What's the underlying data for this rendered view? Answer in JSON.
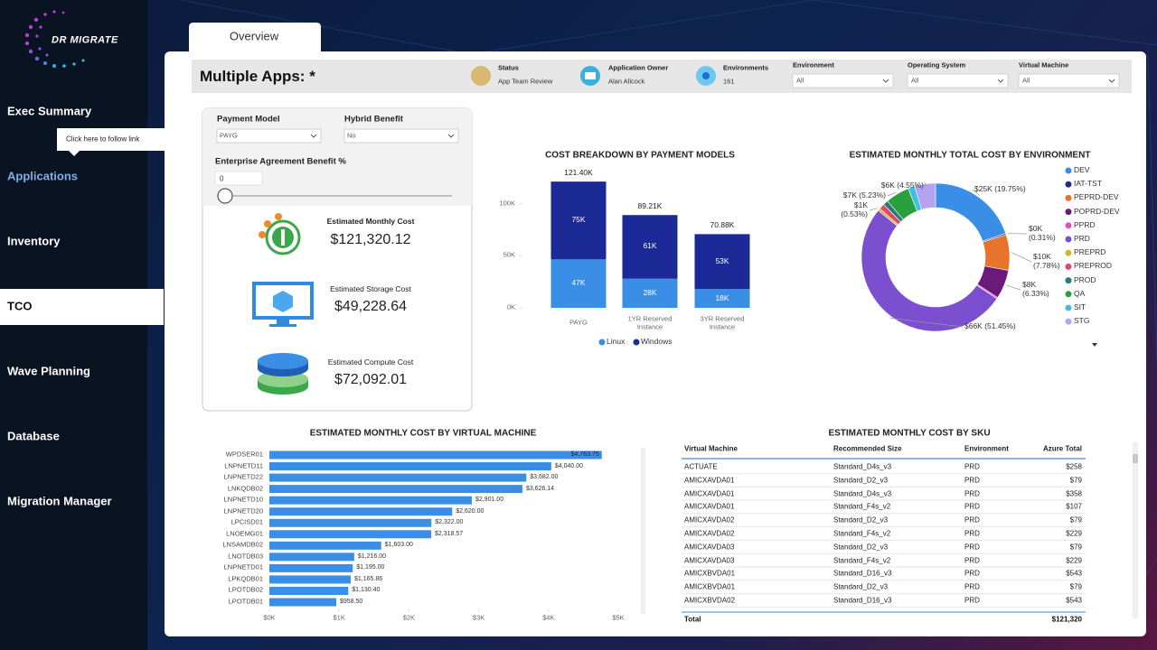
{
  "sidebar": {
    "logo": "DR MIGRATE",
    "nav": [
      "Exec Summary",
      "Applications",
      "Inventory",
      "TCO",
      "Wave Planning",
      "Database",
      "Migration Manager"
    ],
    "tooltip": "Click here to follow link"
  },
  "tab": "Overview",
  "header": {
    "title": "Multiple Apps: *",
    "info": [
      {
        "label": "Status",
        "value": "App Team Review"
      },
      {
        "label": "Application Owner",
        "value": "Alan Allcock"
      },
      {
        "label": "Environments",
        "value": "161"
      }
    ],
    "filters": [
      {
        "label": "Environment",
        "value": "All"
      },
      {
        "label": "Operating System",
        "value": "All"
      },
      {
        "label": "Virtual Machine",
        "value": "All"
      }
    ]
  },
  "parameters": [
    {
      "label": "Payment Model",
      "value": "PAYG"
    },
    {
      "label": "Hybrid Benefit",
      "value": "No"
    },
    {
      "label": "Enterprise Agreement Benefit %",
      "value": "0"
    }
  ],
  "kpis": [
    {
      "label": "Estimated Monthly Cost",
      "value": "$121,320.12"
    },
    {
      "label": "Estimated Storage Cost",
      "value": "$49,228.64"
    },
    {
      "label": "Estimated Compute Cost",
      "value": "$72,092.01"
    }
  ],
  "chart_data": [
    {
      "type": "stacked_bar",
      "title": "COST BREAKDOWN BY PAYMENT MODELS",
      "categories": [
        "PAYG",
        "1YR Reserved Instance",
        "3YR Reserved Instance"
      ],
      "series": [
        {
          "name": "Linux",
          "color": "#3a8ee6",
          "values": [
            46600,
            28000,
            18000
          ],
          "value_labels": [
            "47K",
            "28K",
            "18K"
          ]
        },
        {
          "name": "Windows",
          "color": "#1b2a96",
          "values": [
            74800,
            61210,
            52880
          ],
          "value_labels": [
            "75K",
            "61K",
            "53K"
          ]
        }
      ],
      "total_labels": [
        "121.40K",
        "89.21K",
        "70.88K"
      ],
      "ylim": [
        0,
        125000
      ],
      "yticks": [
        {
          "value": 0,
          "label": "0K"
        },
        {
          "value": 50000,
          "label": "50K"
        },
        {
          "value": 100000,
          "label": "100K"
        }
      ],
      "legend": "bottom"
    },
    {
      "type": "donut",
      "title": "ESTIMATED MONTHLY TOTAL COST BY ENVIRONMENT",
      "categories": [
        "DEV",
        "IAT-TST",
        "PEPRD-DEV",
        "POPRD-DEV",
        "PPRD",
        "PRD",
        "PREPRD",
        "PREPROD",
        "PROD",
        "QA",
        "SIT",
        "STG"
      ],
      "values": [
        19.75,
        0.31,
        7.78,
        6.33,
        0.3,
        51.45,
        0.53,
        1.2,
        1.1,
        5.23,
        1.47,
        4.55
      ],
      "value_labels": [
        "$25K (19.75%)",
        "$0K (0.31%)",
        "$10K (7.78%)",
        "$8K (6.33%)",
        null,
        "$66K (51.45%)",
        "$1K (0.53%)",
        null,
        null,
        "$7K (5.23%)",
        null,
        "$6K (4.55%)"
      ],
      "colors": [
        "#3a8ee6",
        "#1a2b8c",
        "#e8732b",
        "#6b1a7a",
        "#e04fc4",
        "#7b4fd0",
        "#d4b62a",
        "#e0476a",
        "#2a7a7a",
        "#2aa03c",
        "#3ec1e0",
        "#b5a2f0"
      ],
      "legend": "right"
    },
    {
      "type": "hbar",
      "title": "ESTIMATED MONTHLY COST BY VIRTUAL MACHINE",
      "categories": [
        "WPDSER01",
        "LNPNETD11",
        "LNPNETD22",
        "LNKQDB02",
        "LNPNETD10",
        "LNPNETD20",
        "LPCISD01",
        "LNOEMG01",
        "LNSAMDB02",
        "LNOTDB03",
        "LNPNETD01",
        "LPKQDB01",
        "LPOTDB02",
        "LPOTDB01"
      ],
      "values": [
        4763.75,
        4040.0,
        3682.0,
        3626.14,
        2901.0,
        2620.0,
        2322.0,
        2318.57,
        1603.0,
        1216.0,
        1195.0,
        1165.86,
        1130.4,
        958.5
      ],
      "value_labels": [
        "$4,763.75",
        "$4,040.00",
        "$3,682.00",
        "$3,626.14",
        "$2,901.00",
        "$2,620.00",
        "$2,322.00",
        "$2,318.57",
        "$1,603.00",
        "$1,216.00",
        "$1,195.00",
        "$1,165.86",
        "$1,130.40",
        "$958.50"
      ],
      "color": "#3a8ee6",
      "xlim": [
        0,
        5000
      ],
      "xticks": [
        {
          "value": 0,
          "label": "$0K"
        },
        {
          "value": 1000,
          "label": "$1K"
        },
        {
          "value": 2000,
          "label": "$2K"
        },
        {
          "value": 3000,
          "label": "$3K"
        },
        {
          "value": 4000,
          "label": "$4K"
        },
        {
          "value": 5000,
          "label": "$5K"
        }
      ],
      "grid": false
    }
  ],
  "table": {
    "title": "ESTIMATED MONTHLY COST BY SKU",
    "columns": [
      "Virtual Machine",
      "Recommended Size",
      "Environment",
      "Azure Total"
    ],
    "rows": [
      [
        "ACTUATE",
        "Standard_D4s_v3",
        "PRD",
        "$258"
      ],
      [
        "AMICXAVDA01",
        "Standard_D2_v3",
        "PRD",
        "$79"
      ],
      [
        "AMICXAVDA01",
        "Standard_D4s_v3",
        "PRD",
        "$358"
      ],
      [
        "AMICXAVDA01",
        "Standard_F4s_v2",
        "PRD",
        "$107"
      ],
      [
        "AMICXAVDA02",
        "Standard_D2_v3",
        "PRD",
        "$79"
      ],
      [
        "AMICXAVDA02",
        "Standard_F4s_v2",
        "PRD",
        "$229"
      ],
      [
        "AMICXAVDA03",
        "Standard_D2_v3",
        "PRD",
        "$79"
      ],
      [
        "AMICXAVDA03",
        "Standard_F4s_v2",
        "PRD",
        "$229"
      ],
      [
        "AMICXBVDA01",
        "Standard_D16_v3",
        "PRD",
        "$543"
      ],
      [
        "AMICXBVDA01",
        "Standard_D2_v3",
        "PRD",
        "$79"
      ],
      [
        "AMICXBVDA02",
        "Standard_D16_v3",
        "PRD",
        "$543"
      ]
    ],
    "total": [
      "Total",
      "$121,320"
    ]
  }
}
